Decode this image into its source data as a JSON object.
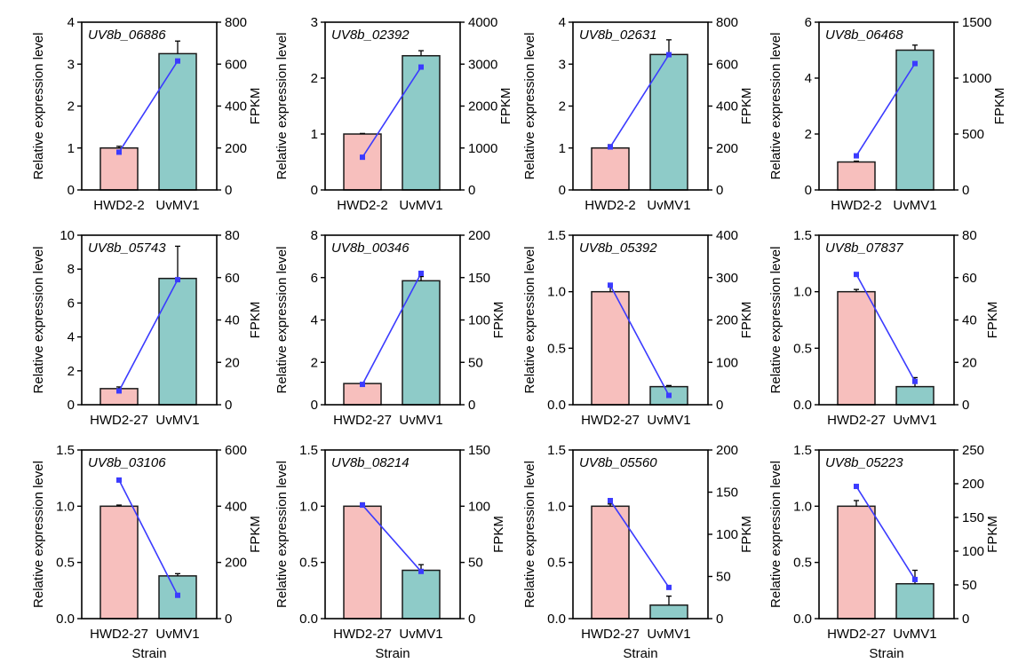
{
  "chart_data": [
    {
      "type": "bar",
      "gene": "UV8b_06886",
      "categories": [
        "HWD2-2",
        "UvMV1"
      ],
      "values": [
        1.0,
        3.25
      ],
      "errors": [
        0.04,
        0.3
      ],
      "fpkm": [
        180,
        615
      ],
      "ylim": [
        0,
        4
      ],
      "yticks": [
        "0",
        "1",
        "2",
        "3",
        "4"
      ],
      "ylim2": [
        0,
        800
      ],
      "yticks2": [
        "0",
        "200",
        "400",
        "600",
        "800"
      ],
      "ylabel": "Relative expression level",
      "ylabel2": "FPKM",
      "xlabel": ""
    },
    {
      "type": "bar",
      "gene": "UV8b_02392",
      "categories": [
        "HWD2-2",
        "UvMV1"
      ],
      "values": [
        1.0,
        2.4
      ],
      "errors": [
        0.01,
        0.09
      ],
      "fpkm": [
        780,
        2930
      ],
      "ylim": [
        0,
        3
      ],
      "yticks": [
        "0",
        "1",
        "2",
        "3"
      ],
      "ylim2": [
        0,
        4000
      ],
      "yticks2": [
        "0",
        "1000",
        "2000",
        "3000",
        "4000"
      ],
      "ylabel": "Relative expression level",
      "ylabel2": "FPKM",
      "xlabel": ""
    },
    {
      "type": "bar",
      "gene": "UV8b_02631",
      "categories": [
        "HWD2-2",
        "UvMV1"
      ],
      "values": [
        1.0,
        3.23
      ],
      "errors": [
        0.08,
        0.35
      ],
      "fpkm": [
        205,
        645
      ],
      "ylim": [
        0,
        4
      ],
      "yticks": [
        "0",
        "1",
        "2",
        "3",
        "4"
      ],
      "ylim2": [
        0,
        800
      ],
      "yticks2": [
        "0",
        "200",
        "400",
        "600",
        "800"
      ],
      "ylabel": "Relative expression level",
      "ylabel2": "FPKM",
      "xlabel": ""
    },
    {
      "type": "bar",
      "gene": "UV8b_06468",
      "categories": [
        "HWD2-2",
        "UvMV1"
      ],
      "values": [
        1.0,
        5.0
      ],
      "errors": [
        0.03,
        0.18
      ],
      "fpkm": [
        305,
        1130
      ],
      "ylim": [
        0,
        6
      ],
      "yticks": [
        "0",
        "2",
        "4",
        "6"
      ],
      "ylim2": [
        0,
        1500
      ],
      "yticks2": [
        "0",
        "500",
        "1000",
        "1500"
      ],
      "ylabel": "Relative expression level",
      "ylabel2": "FPKM",
      "xlabel": ""
    },
    {
      "type": "bar",
      "gene": "UV8b_05743",
      "categories": [
        "HWD2-27",
        "UvMV1"
      ],
      "values": [
        0.95,
        7.45
      ],
      "errors": [
        0.1,
        1.9
      ],
      "fpkm": [
        6.5,
        59
      ],
      "ylim": [
        0,
        10
      ],
      "yticks": [
        "0",
        "2",
        "4",
        "6",
        "8",
        "10"
      ],
      "ylim2": [
        0,
        80
      ],
      "yticks2": [
        "0",
        "20",
        "40",
        "60",
        "80"
      ],
      "ylabel": "Relative expression level",
      "ylabel2": "FPKM",
      "xlabel": ""
    },
    {
      "type": "bar",
      "gene": "UV8b_00346",
      "categories": [
        "HWD2-27",
        "UvMV1"
      ],
      "values": [
        1.0,
        5.85
      ],
      "errors": [
        0.03,
        0.2
      ],
      "fpkm": [
        24,
        155
      ],
      "ylim": [
        0,
        8
      ],
      "yticks": [
        "0",
        "2",
        "4",
        "6",
        "8"
      ],
      "ylim2": [
        0,
        200
      ],
      "yticks2": [
        "0",
        "50",
        "100",
        "150",
        "200"
      ],
      "ylabel": "Relative expression level",
      "ylabel2": "FPKM",
      "xlabel": ""
    },
    {
      "type": "bar",
      "gene": "UV8b_05392",
      "categories": [
        "HWD2-27",
        "UvMV1"
      ],
      "values": [
        1.0,
        0.16
      ],
      "errors": [
        0.07,
        0.01
      ],
      "fpkm": [
        282,
        22
      ],
      "ylim": [
        0,
        1.5
      ],
      "yticks": [
        "0.0",
        "0.5",
        "1.0",
        "1.5"
      ],
      "ylim2": [
        0,
        400
      ],
      "yticks2": [
        "0",
        "100",
        "200",
        "300",
        "400"
      ],
      "ylabel": "Relative expression level",
      "ylabel2": "FPKM",
      "xlabel": ""
    },
    {
      "type": "bar",
      "gene": "UV8b_07837",
      "categories": [
        "HWD2-27",
        "UvMV1"
      ],
      "values": [
        1.0,
        0.16
      ],
      "errors": [
        0.02,
        0.08
      ],
      "fpkm": [
        61.5,
        11
      ],
      "ylim": [
        0,
        1.5
      ],
      "yticks": [
        "0.0",
        "0.5",
        "1.0",
        "1.5"
      ],
      "ylim2": [
        0,
        80
      ],
      "yticks2": [
        "0",
        "20",
        "40",
        "60",
        "80"
      ],
      "ylabel": "Relative expression level",
      "ylabel2": "FPKM",
      "xlabel": ""
    },
    {
      "type": "bar",
      "gene": "UV8b_03106",
      "categories": [
        "HWD2-27",
        "UvMV1"
      ],
      "values": [
        1.0,
        0.38
      ],
      "errors": [
        0.01,
        0.02
      ],
      "fpkm": [
        493,
        83
      ],
      "ylim": [
        0,
        1.5
      ],
      "yticks": [
        "0.0",
        "0.5",
        "1.0",
        "1.5"
      ],
      "ylim2": [
        0,
        600
      ],
      "yticks2": [
        "0",
        "200",
        "400",
        "600"
      ],
      "ylabel": "Relative expression level",
      "ylabel2": "FPKM",
      "xlabel": "Strain"
    },
    {
      "type": "bar",
      "gene": "UV8b_08214",
      "categories": [
        "HWD2-27",
        "UvMV1"
      ],
      "values": [
        1.0,
        0.43
      ],
      "errors": [
        0.03,
        0.05
      ],
      "fpkm": [
        101,
        42
      ],
      "ylim": [
        0,
        1.5
      ],
      "yticks": [
        "0.0",
        "0.5",
        "1.0",
        "1.5"
      ],
      "ylim2": [
        0,
        150
      ],
      "yticks2": [
        "0",
        "50",
        "100",
        "150"
      ],
      "ylabel": "Relative expression level",
      "ylabel2": "FPKM",
      "xlabel": "Strain"
    },
    {
      "type": "bar",
      "gene": "UV8b_05560",
      "categories": [
        "HWD2-27",
        "UvMV1"
      ],
      "values": [
        1.0,
        0.12
      ],
      "errors": [
        0.02,
        0.08
      ],
      "fpkm": [
        140,
        37
      ],
      "ylim": [
        0,
        1.5
      ],
      "yticks": [
        "0.0",
        "0.5",
        "1.0",
        "1.5"
      ],
      "ylim2": [
        0,
        200
      ],
      "yticks2": [
        "0",
        "50",
        "100",
        "150",
        "200"
      ],
      "ylabel": "Relative expression level",
      "ylabel2": "FPKM",
      "xlabel": "Strain"
    },
    {
      "type": "bar",
      "gene": "UV8b_05223",
      "categories": [
        "HWD2-27",
        "UvMV1"
      ],
      "values": [
        1.0,
        0.31
      ],
      "errors": [
        0.05,
        0.12
      ],
      "fpkm": [
        196,
        58
      ],
      "ylim": [
        0,
        1.5
      ],
      "yticks": [
        "0.0",
        "0.5",
        "1.0",
        "1.5"
      ],
      "ylim2": [
        0,
        250
      ],
      "yticks2": [
        "0",
        "50",
        "100",
        "150",
        "200",
        "250"
      ],
      "ylabel": "Relative expression level",
      "ylabel2": "FPKM",
      "xlabel": "Strain"
    }
  ],
  "colors": {
    "bar_control": "#f7bfbd",
    "bar_treatment": "#8ecbc8",
    "fpkm_line": "#3b3bff",
    "axis": "#000000"
  }
}
